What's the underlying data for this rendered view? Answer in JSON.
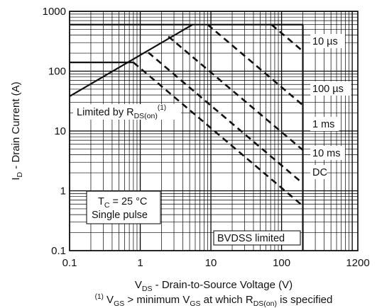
{
  "chart_data": {
    "type": "line",
    "title": "",
    "xlabel": {
      "main": "V",
      "sub": "DS",
      "rest": " - Drain-to-Source Voltage (V)"
    },
    "ylabel": {
      "main": "I",
      "sub": "D",
      "rest": " - Drain Current (A)"
    },
    "x_scale": "log",
    "y_scale": "log",
    "xlim": [
      0.1,
      1200
    ],
    "ylim": [
      0.1,
      1000
    ],
    "x_ticks": [
      {
        "value": 0.1,
        "label": "0.1"
      },
      {
        "value": 1,
        "label": "1"
      },
      {
        "value": 10,
        "label": "10"
      },
      {
        "value": 100,
        "label": "100"
      },
      {
        "value": 1200,
        "label": "1200"
      }
    ],
    "y_ticks": [
      {
        "value": 0.1,
        "label": "0.1"
      },
      {
        "value": 1,
        "label": "1"
      },
      {
        "value": 10,
        "label": "10"
      },
      {
        "value": 100,
        "label": "100"
      },
      {
        "value": 1000,
        "label": "1000"
      }
    ],
    "grid": true,
    "boundary_lines": [
      {
        "name": "RDS(on) limit",
        "style": "solid",
        "x": [
          0.1,
          5.5
        ],
        "y": [
          38,
          600
        ]
      },
      {
        "name": "current limit",
        "style": "solid",
        "x": [
          0.1,
          200
        ],
        "y": [
          600,
          600
        ]
      },
      {
        "name": "DC current limit",
        "style": "solid",
        "x": [
          0.1,
          0.8
        ],
        "y": [
          140,
          140
        ]
      },
      {
        "name": "BVDSS limit",
        "style": "solid",
        "x": [
          200,
          200
        ],
        "y": [
          0.1,
          600
        ]
      }
    ],
    "series": [
      {
        "name": "10 µs",
        "style": "dashed",
        "x": [
          72,
          200
        ],
        "y": [
          600,
          216
        ]
      },
      {
        "name": "100 µs",
        "style": "dashed",
        "x": [
          9,
          200
        ],
        "y": [
          600,
          27
        ]
      },
      {
        "name": "1 ms",
        "style": "dashed",
        "x": [
          2.5,
          200
        ],
        "y": [
          380,
          4.8
        ]
      },
      {
        "name": "10 ms",
        "style": "dashed",
        "x": [
          1.3,
          200
        ],
        "y": [
          205,
          1.33
        ]
      },
      {
        "name": "DC",
        "style": "dashed",
        "x": [
          0.8,
          200
        ],
        "y": [
          140,
          0.56
        ]
      }
    ],
    "annotations": {
      "rds_limit": {
        "text": "Limited by R",
        "sub": "DS(on)",
        "sup": "(1)"
      },
      "conditions": {
        "line1_main": "T",
        "line1_sub": "C",
        "line1_rest": " = 25 °C",
        "line2": "Single pulse"
      },
      "bvdss": "BVDSS limited"
    },
    "footnote": {
      "sup": "(1)",
      "a": " V",
      "a_sub": "GS",
      "b": " > minimum V",
      "b_sub": "GS",
      "c": " at which R",
      "c_sub": "DS(on)",
      "d": " is specified"
    }
  }
}
